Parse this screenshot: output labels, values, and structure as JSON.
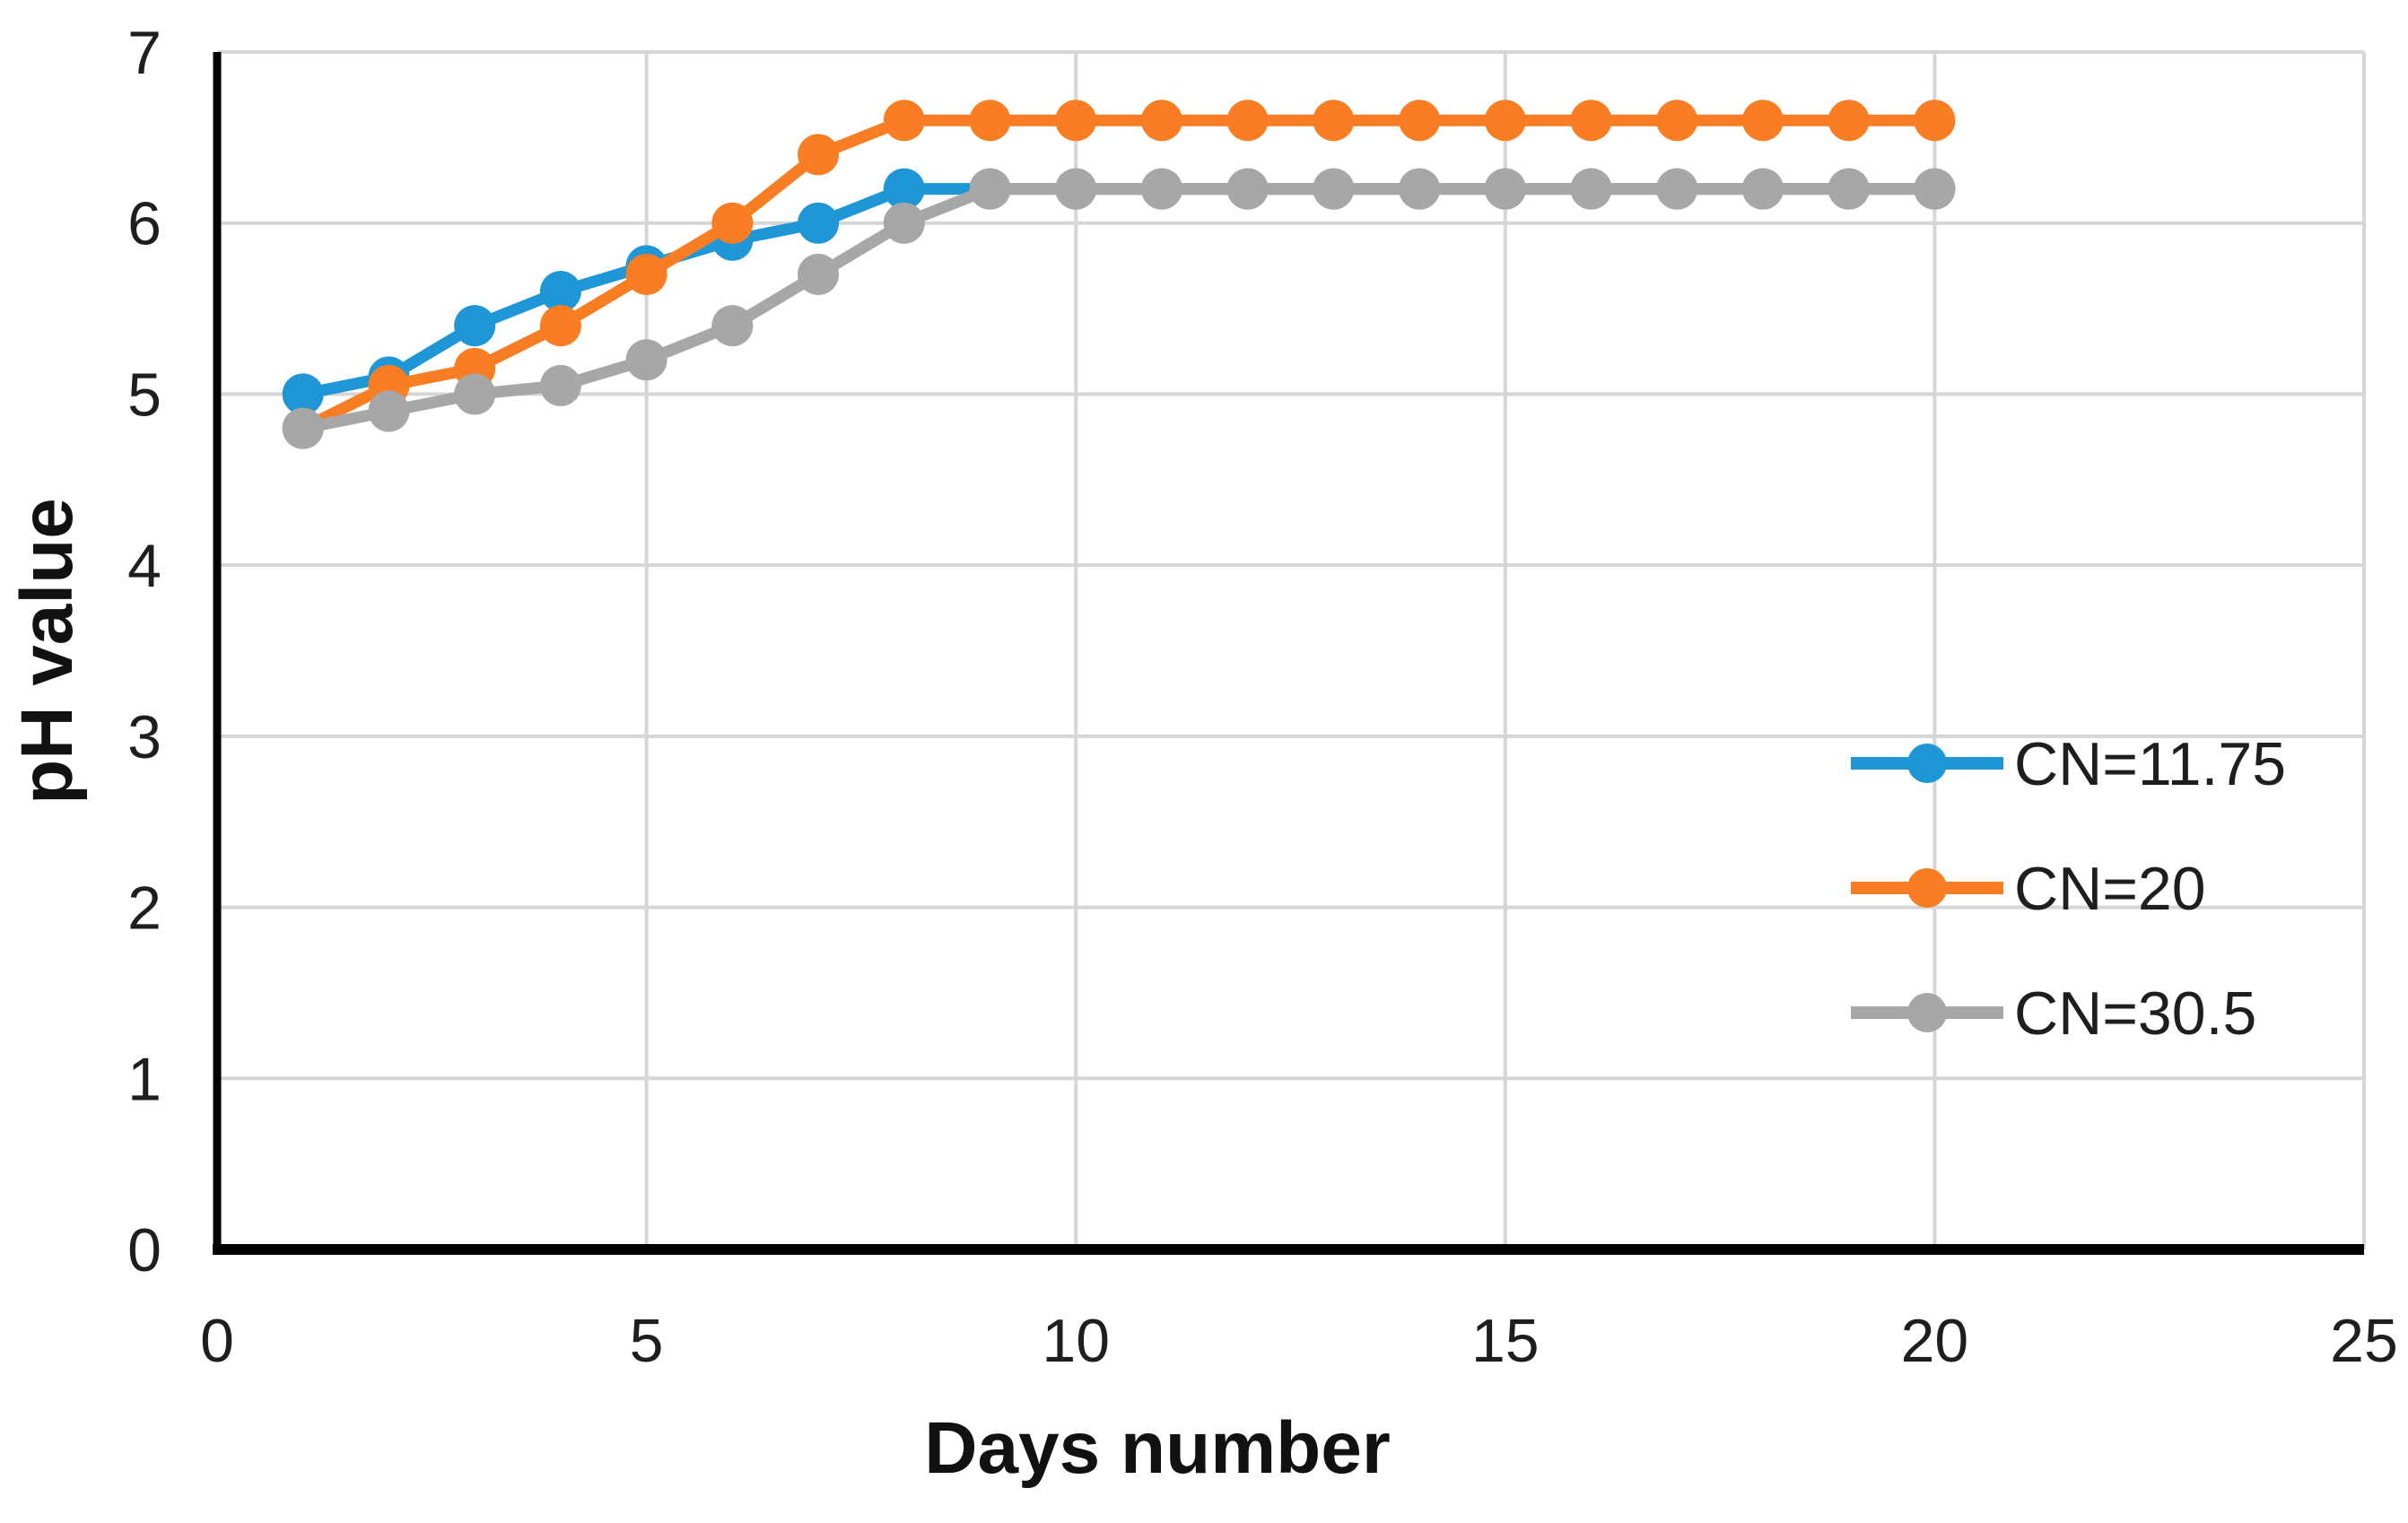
{
  "chart_data": {
    "type": "line",
    "title": "",
    "xlabel": "Days number",
    "ylabel": "pH value",
    "x": [
      1,
      2,
      3,
      4,
      5,
      6,
      7,
      8,
      9,
      10,
      11,
      12,
      13,
      14,
      15,
      16,
      17,
      18,
      19,
      20
    ],
    "series": [
      {
        "name": "CN=11.75",
        "color": "#1F96D5",
        "values": [
          5.0,
          5.1,
          5.4,
          5.6,
          5.75,
          5.9,
          6.0,
          6.2,
          6.2,
          6.2,
          6.2,
          6.2,
          6.2,
          6.2,
          6.2,
          6.2,
          6.2,
          6.2,
          6.2,
          6.2
        ]
      },
      {
        "name": "CN=20",
        "color": "#F87D23",
        "values": [
          4.8,
          5.05,
          5.15,
          5.4,
          5.7,
          6.0,
          6.4,
          6.6,
          6.6,
          6.6,
          6.6,
          6.6,
          6.6,
          6.6,
          6.6,
          6.6,
          6.6,
          6.6,
          6.6,
          6.6
        ]
      },
      {
        "name": "CN=30.5",
        "color": "#A7A7A7",
        "values": [
          4.8,
          4.9,
          5.0,
          5.05,
          5.2,
          5.4,
          5.7,
          6.0,
          6.2,
          6.2,
          6.2,
          6.2,
          6.2,
          6.2,
          6.2,
          6.2,
          6.2,
          6.2,
          6.2,
          6.2
        ]
      }
    ],
    "xlim": [
      0,
      25
    ],
    "ylim": [
      0,
      7
    ],
    "x_ticks": [
      0,
      5,
      10,
      15,
      20,
      25
    ],
    "y_ticks": [
      0,
      1,
      2,
      3,
      4,
      5,
      6,
      7
    ],
    "grid": "on",
    "legend_position": "right-middle",
    "colors": {
      "gridline": "#D6D6D6",
      "axis_line": "#000000",
      "tick_text": "#1E1E1E"
    }
  }
}
